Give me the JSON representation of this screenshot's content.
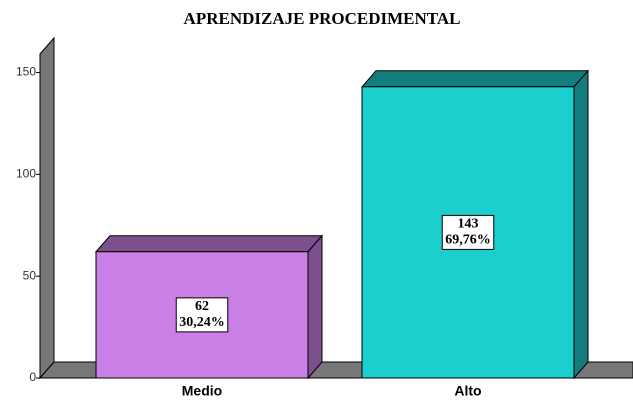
{
  "chart_data": {
    "type": "bar3d",
    "title": "APRENDIZAJE PROCEDIMENTAL",
    "categories": [
      "Medio",
      "Alto"
    ],
    "values": [
      62,
      143
    ],
    "percent_values": [
      30.24,
      69.76
    ],
    "percent_value_labels": [
      "30,24%",
      "69,76%"
    ],
    "colors": [
      "#c97fe6",
      "#1ccfcf"
    ],
    "shade_colors": [
      "#7d4f8c",
      "#137c7c"
    ],
    "ylim": [
      0,
      165
    ],
    "yticks": [
      0,
      50,
      100,
      150
    ]
  }
}
